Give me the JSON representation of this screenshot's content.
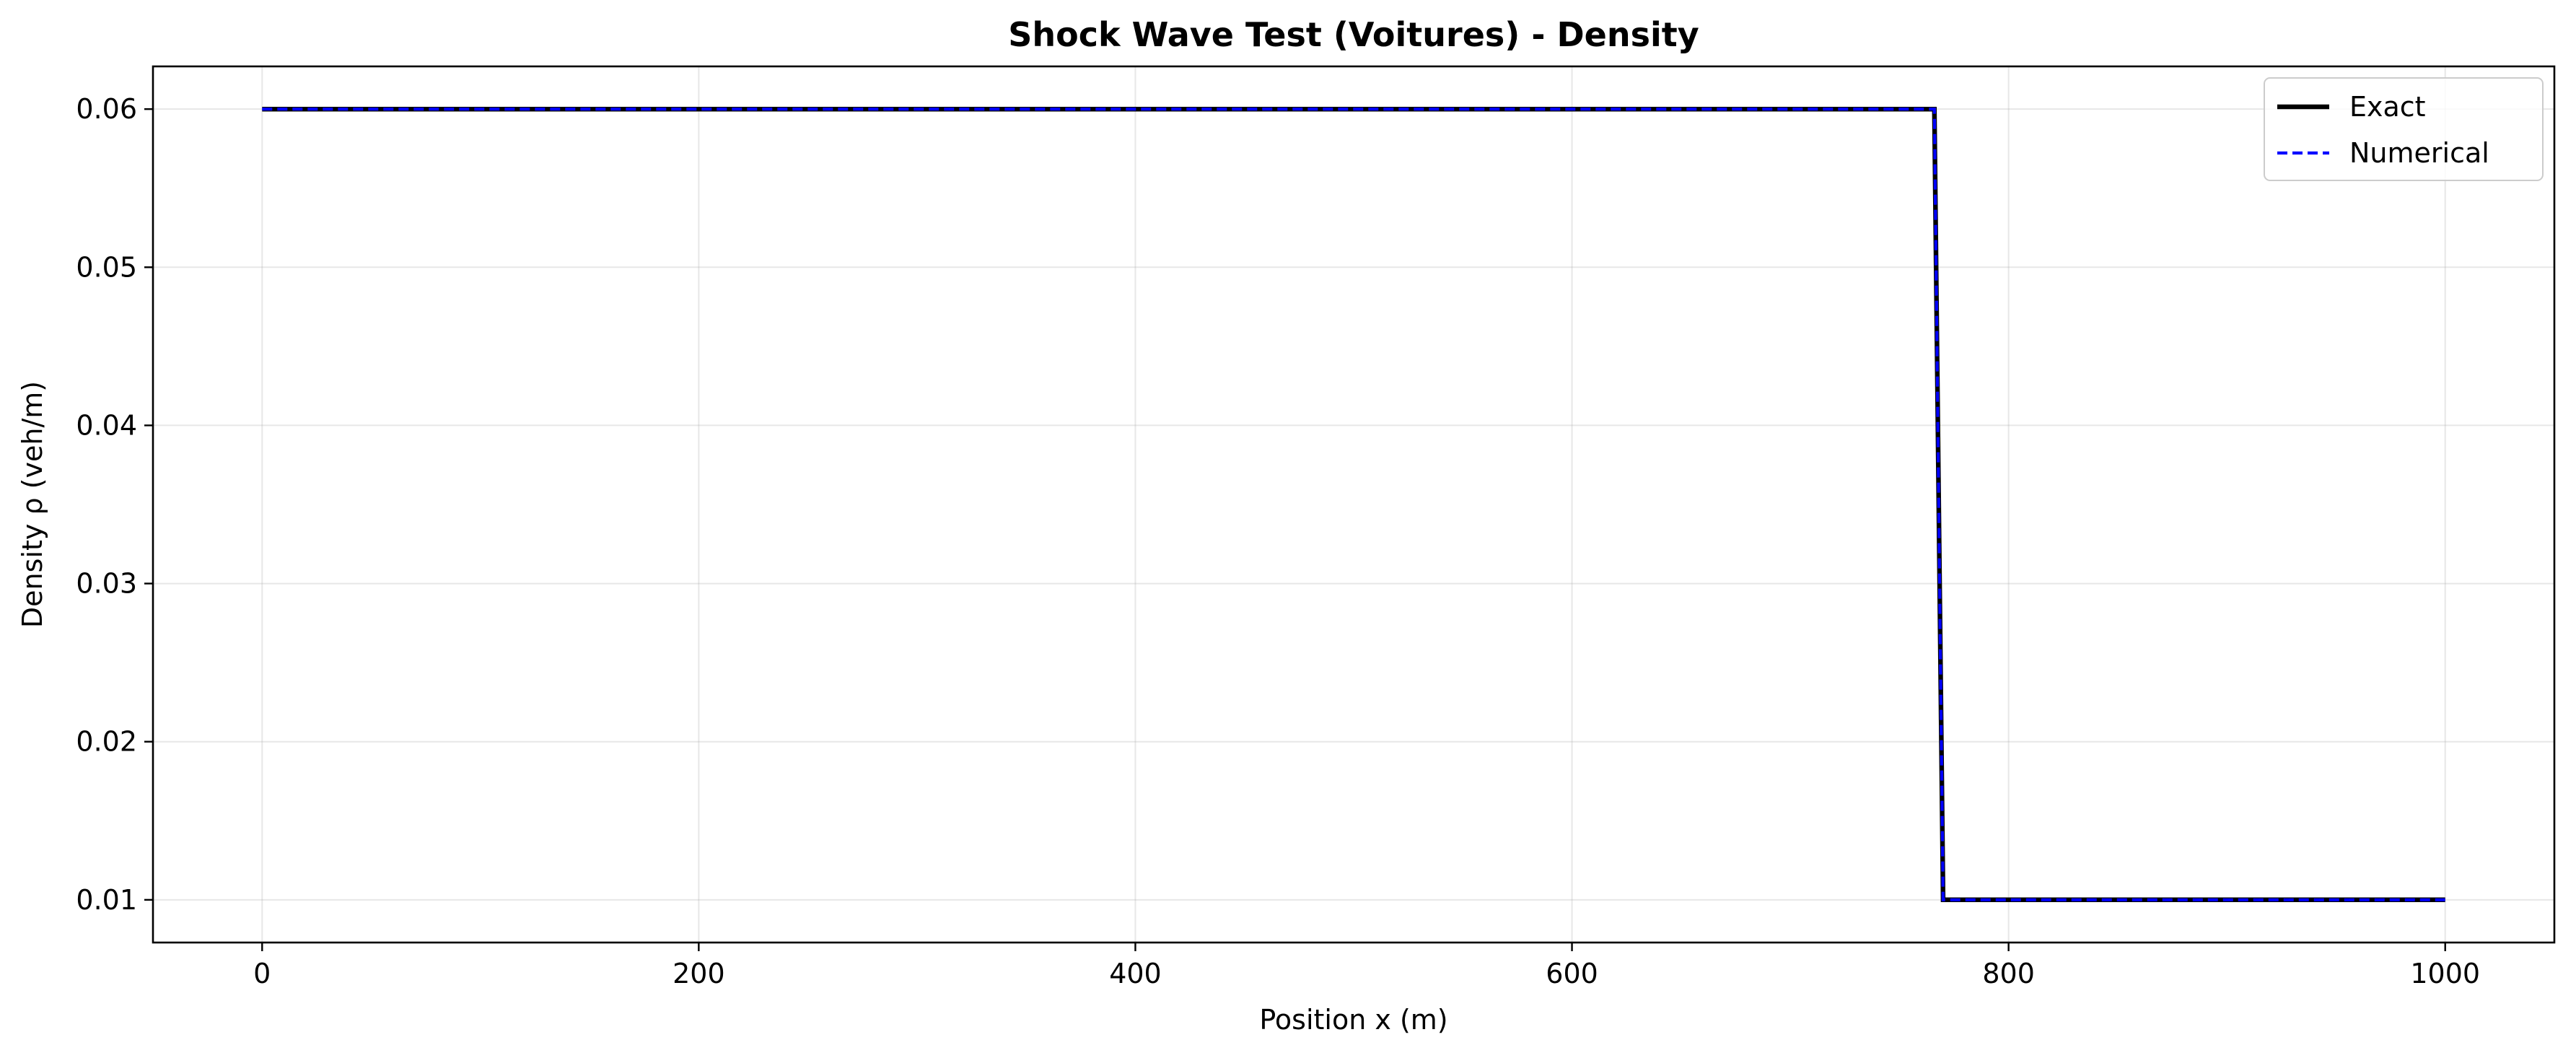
{
  "chart_data": {
    "type": "line",
    "title": "Shock Wave Test (Voitures) - Density",
    "xlabel": "Position x (m)",
    "ylabel": "Density ρ (veh/m)",
    "xlim": [
      -50,
      1050
    ],
    "ylim": [
      0.0073,
      0.0627
    ],
    "xticks": [
      0,
      200,
      400,
      600,
      800,
      1000
    ],
    "xtick_labels": [
      "0",
      "200",
      "400",
      "600",
      "800",
      "1000"
    ],
    "yticks": [
      0.01,
      0.02,
      0.03,
      0.04,
      0.05,
      0.06
    ],
    "ytick_labels": [
      "0.01",
      "0.02",
      "0.03",
      "0.04",
      "0.05",
      "0.06"
    ],
    "grid": true,
    "legend_position": "top-right",
    "series": [
      {
        "name": "Exact",
        "color": "#000000",
        "style": "solid",
        "x": [
          0,
          766,
          770,
          1000
        ],
        "y": [
          0.06,
          0.06,
          0.01,
          0.01
        ]
      },
      {
        "name": "Numerical",
        "color": "#0000ff",
        "style": "dashed",
        "x": [
          0,
          766,
          770,
          1000
        ],
        "y": [
          0.06,
          0.06,
          0.01,
          0.01
        ]
      }
    ]
  }
}
